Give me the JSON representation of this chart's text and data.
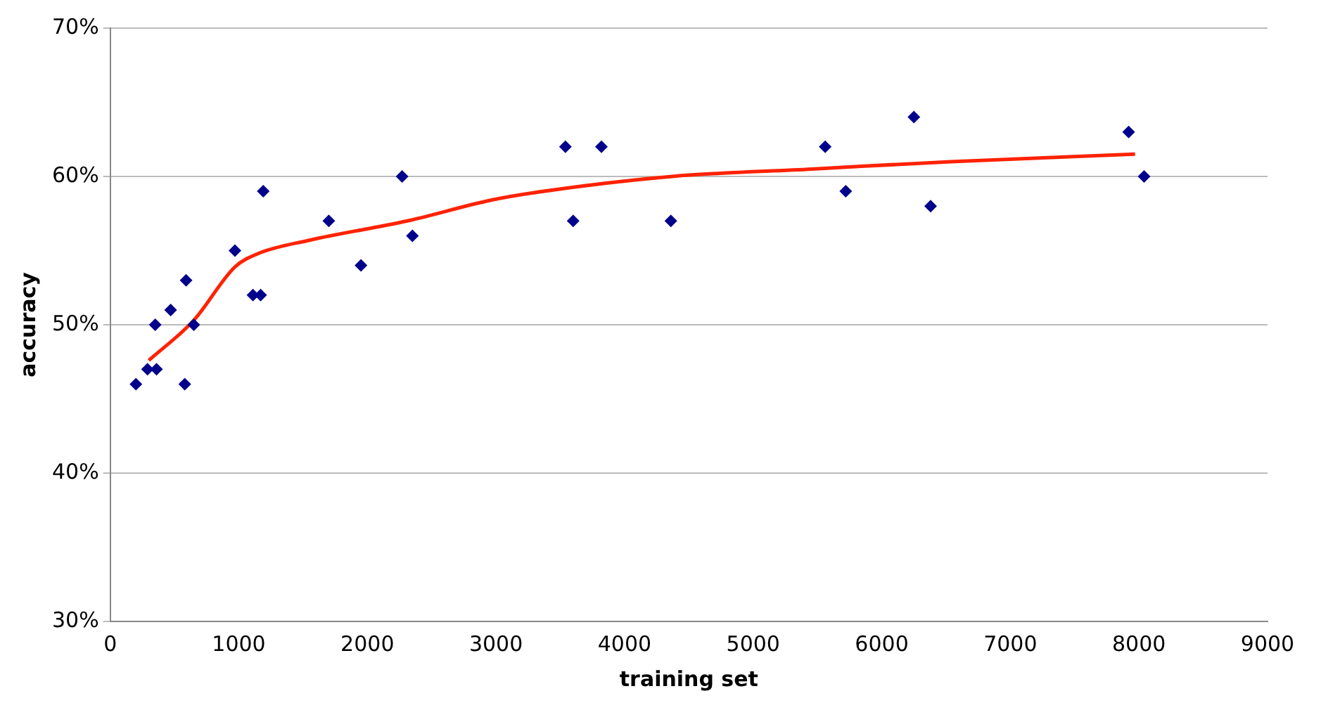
{
  "chart_data": {
    "type": "scatter",
    "xlabel": "training set",
    "ylabel": "accuracy",
    "xlim": [
      0,
      9000
    ],
    "xticks": [
      0,
      1000,
      2000,
      3000,
      4000,
      5000,
      6000,
      7000,
      8000,
      9000
    ],
    "ylim": [
      30,
      70
    ],
    "yticks": [
      {
        "value": 30,
        "label": "30%"
      },
      {
        "value": 40,
        "label": "40%"
      },
      {
        "value": 50,
        "label": "50%"
      },
      {
        "value": 60,
        "label": "60%"
      },
      {
        "value": 70,
        "label": "70%"
      }
    ],
    "grid": "y",
    "legend": false,
    "series": [
      {
        "type": "scatter",
        "color": "#00008b",
        "marker": "diamond",
        "x": [
          200,
          290,
          350,
          360,
          470,
          580,
          590,
          650,
          970,
          1110,
          1170,
          1190,
          1700,
          1950,
          2270,
          2350,
          3540,
          3600,
          3820,
          4360,
          5560,
          5720,
          6250,
          6380,
          7920,
          8040
        ],
        "values": [
          46,
          47,
          50,
          47,
          51,
          46,
          53,
          50,
          55,
          52,
          52,
          59,
          57,
          54,
          60,
          56,
          62,
          57,
          62,
          57,
          62,
          59,
          64,
          58,
          63,
          60
        ]
      },
      {
        "type": "line",
        "color": "#ff2200",
        "marker": "none",
        "line_style": "solid",
        "x": [
          300,
          650,
          970,
          1150,
          1550,
          2310,
          2960,
          3290,
          4370,
          5460,
          6540,
          7970
        ],
        "values": [
          47.6,
          50.3,
          53.9,
          54.8,
          55.7,
          57.0,
          58.4,
          58.9,
          60.0,
          60.5,
          61.0,
          61.5
        ]
      }
    ]
  }
}
